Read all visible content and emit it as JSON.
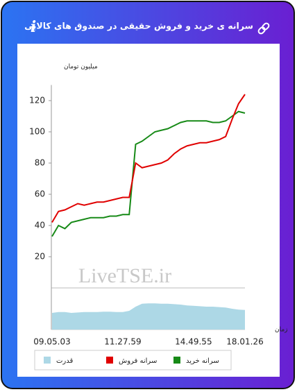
{
  "header": {
    "title": "سرانه ی خرید و فروش حقیقی در صندوق های کالایی",
    "info_icon": "i"
  },
  "chart_data": {
    "type": "line",
    "y_label": "میلیون تومان",
    "x_label": "زمان",
    "watermark": "LiveTSE.ir",
    "x": [
      "09.05.03",
      null,
      null,
      null,
      null,
      null,
      null,
      null,
      null,
      null,
      null,
      "11.27.59",
      null,
      null,
      null,
      null,
      null,
      null,
      null,
      null,
      null,
      null,
      "14.49.55",
      null,
      null,
      null,
      null,
      null,
      null,
      null,
      "18.01.26"
    ],
    "ylim": [
      0,
      130
    ],
    "yticks": [
      20,
      40,
      60,
      80,
      100,
      120
    ],
    "y2lim": [
      0,
      100
    ],
    "series": [
      {
        "name": "سرانه خرید",
        "color": "#178a17",
        "values": [
          33,
          40,
          38,
          42,
          43,
          44,
          45,
          45,
          45,
          46,
          46,
          47,
          47,
          92,
          94,
          97,
          100,
          101,
          102,
          104,
          106,
          107,
          107,
          107,
          107,
          106,
          106,
          107,
          110,
          113,
          112
        ]
      },
      {
        "name": "سرانه فروش",
        "color": "#e00000",
        "values": [
          42,
          49,
          50,
          52,
          54,
          53,
          54,
          55,
          55,
          56,
          57,
          58,
          58,
          80,
          77,
          78,
          79,
          80,
          82,
          86,
          89,
          91,
          92,
          93,
          93,
          94,
          95,
          97,
          108,
          118,
          124
        ]
      },
      {
        "name": "قدرت",
        "color": "#add8e6",
        "axis": "y2",
        "values": [
          40,
          42,
          42,
          40,
          41,
          42,
          42,
          42,
          43,
          43,
          42,
          42,
          45,
          55,
          62,
          63,
          63,
          62,
          62,
          61,
          60,
          58,
          57,
          56,
          55,
          55,
          54,
          53,
          50,
          48,
          47
        ]
      }
    ],
    "legend_order": [
      2,
      1,
      0
    ]
  }
}
